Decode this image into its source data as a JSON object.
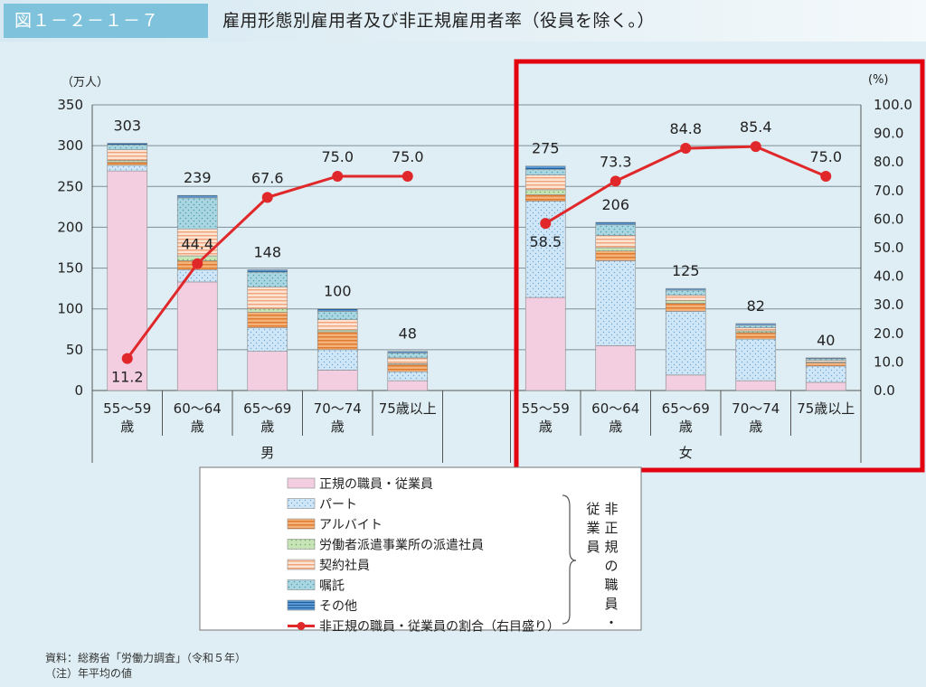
{
  "header": {
    "figure_number": "図１－２－１－７",
    "title": "雇用形態別雇用者及び非正規雇用者率（役員を除く。）"
  },
  "colors": {
    "regular": "#f3cde0",
    "part": "#cfe6f7",
    "arubaito": "#ee9955",
    "haken": "#b7d9a8",
    "keiyaku": "#f7c6a8",
    "shokutaku": "#9dd0dc",
    "other": "#3c7fc0",
    "ratio_line": "#e0282a",
    "highlight": "#e3000f"
  },
  "chart_data": {
    "type": "bar",
    "ylabel_left": "（万人）",
    "ylabel_right": "(%)",
    "ylim_left": [
      0,
      350
    ],
    "ylim_right": [
      0,
      100
    ],
    "yticks_left": [
      "0",
      "50",
      "100",
      "150",
      "200",
      "250",
      "300",
      "350"
    ],
    "yticks_right": [
      "0.0",
      "10.0",
      "20.0",
      "30.0",
      "40.0",
      "50.0",
      "60.0",
      "70.0",
      "80.0",
      "90.0",
      "100.0"
    ],
    "grid": true,
    "groups": [
      {
        "label": "男",
        "categories": [
          {
            "line1": "55～59",
            "line2": "歳",
            "total": 303,
            "total_label": "303",
            "ratio": 11.2,
            "ratio_label": "11.2",
            "values": {
              "regular": 269,
              "part": 7,
              "arubaito": 4,
              "haken": 2,
              "keiyaku": 13,
              "shokutaku": 6,
              "other": 2
            }
          },
          {
            "line1": "60～64",
            "line2": "歳",
            "total": 239,
            "total_label": "239",
            "ratio": 44.4,
            "ratio_label": "44.4",
            "values": {
              "regular": 133,
              "part": 15,
              "arubaito": 11,
              "haken": 6,
              "keiyaku": 33,
              "shokutaku": 38,
              "other": 3
            }
          },
          {
            "line1": "65～69",
            "line2": "歳",
            "total": 148,
            "total_label": "148",
            "ratio": 67.6,
            "ratio_label": "67.6",
            "values": {
              "regular": 48,
              "part": 29,
              "arubaito": 19,
              "haken": 4,
              "keiyaku": 27,
              "shokutaku": 18,
              "other": 3
            }
          },
          {
            "line1": "70～74",
            "line2": "歳",
            "total": 100,
            "total_label": "100",
            "ratio": 75.0,
            "ratio_label": "75.0",
            "values": {
              "regular": 25,
              "part": 25,
              "arubaito": 22,
              "haken": 2,
              "keiyaku": 13,
              "shokutaku": 10,
              "other": 3
            }
          },
          {
            "line1": "75歳以上",
            "line2": "",
            "total": 48,
            "total_label": "48",
            "ratio": 75.0,
            "ratio_label": "75.0",
            "values": {
              "regular": 12,
              "part": 11,
              "arubaito": 9,
              "haken": 1,
              "keiyaku": 7,
              "shokutaku": 6,
              "other": 2
            }
          }
        ]
      },
      {
        "label": "女",
        "categories": [
          {
            "line1": "55～59",
            "line2": "歳",
            "total": 275,
            "total_label": "275",
            "ratio": 58.5,
            "ratio_label": "58.5",
            "values": {
              "regular": 114,
              "part": 118,
              "arubaito": 8,
              "haken": 6,
              "keiyaku": 18,
              "shokutaku": 7,
              "other": 4
            }
          },
          {
            "line1": "60～64",
            "line2": "歳",
            "total": 206,
            "total_label": "206",
            "ratio": 73.3,
            "ratio_label": "73.3",
            "values": {
              "regular": 55,
              "part": 104,
              "arubaito": 12,
              "haken": 4,
              "keiyaku": 15,
              "shokutaku": 13,
              "other": 3
            }
          },
          {
            "line1": "65～69",
            "line2": "歳",
            "total": 125,
            "total_label": "125",
            "ratio": 84.8,
            "ratio_label": "84.8",
            "values": {
              "regular": 19,
              "part": 78,
              "arubaito": 10,
              "haken": 3,
              "keiyaku": 7,
              "shokutaku": 6,
              "other": 2
            }
          },
          {
            "line1": "70～74",
            "line2": "歳",
            "total": 82,
            "total_label": "82",
            "ratio": 85.4,
            "ratio_label": "85.4",
            "values": {
              "regular": 12,
              "part": 51,
              "arubaito": 8,
              "haken": 2,
              "keiyaku": 4,
              "shokutaku": 3,
              "other": 2
            }
          },
          {
            "line1": "75歳以上",
            "line2": "",
            "total": 40,
            "total_label": "40",
            "ratio": 75.0,
            "ratio_label": "75.0",
            "values": {
              "regular": 10,
              "part": 20,
              "arubaito": 4,
              "haken": 1,
              "keiyaku": 2,
              "shokutaku": 2,
              "other": 1
            }
          }
        ]
      }
    ],
    "series": [
      {
        "key": "regular",
        "name": "正規の職員・従業員"
      },
      {
        "key": "part",
        "name": "パート"
      },
      {
        "key": "arubaito",
        "name": "アルバイト"
      },
      {
        "key": "haken",
        "name": "労働者派遣事業所の派遣社員"
      },
      {
        "key": "keiyaku",
        "name": "契約社員"
      },
      {
        "key": "shokutaku",
        "name": "嘱託"
      },
      {
        "key": "other",
        "name": "その他"
      }
    ],
    "line_series_name": "非正規の職員・従業員の割合（右目盛り）",
    "bracket_label": "非正規の職員・従業員",
    "legend_position": "bottom"
  },
  "source": {
    "line1": "資料：総務省「労働力調査」（令和５年）",
    "line2": "（注）年平均の値"
  }
}
